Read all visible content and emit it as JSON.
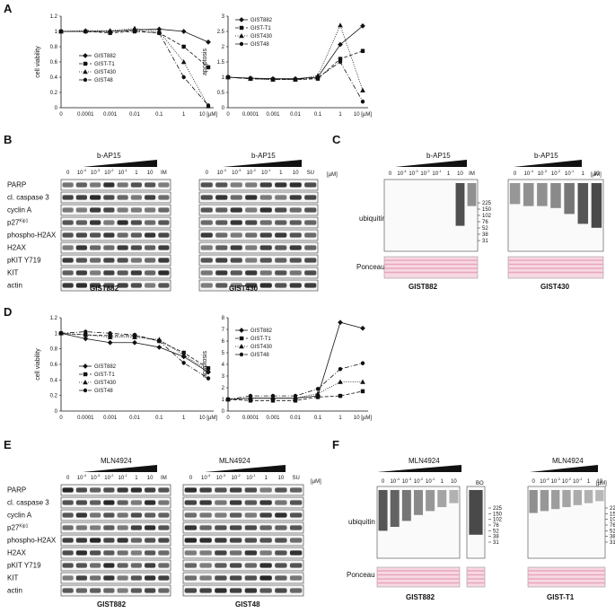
{
  "panels": {
    "A": "A",
    "B": "B",
    "C": "C",
    "D": "D",
    "E": "E",
    "F": "F"
  },
  "x_ticks": [
    "0",
    "0.0001",
    "0.001",
    "0.01",
    "0.1",
    "1",
    "10 [µM]"
  ],
  "series_names": [
    "GIST882",
    "GIST-T1",
    "GIST430",
    "GIST48"
  ],
  "chart_data": [
    {
      "id": "A-viability",
      "type": "line",
      "ylabel": "cell viability",
      "ylim": [
        0,
        1.2
      ],
      "yticks": [
        "0",
        "0.2",
        "0.4",
        "0.6",
        "0.8",
        "1",
        "1.2"
      ],
      "categories": [
        "0",
        "0.0001",
        "0.001",
        "0.01",
        "0.1",
        "1",
        "10"
      ],
      "series": [
        {
          "name": "GIST882",
          "values": [
            1,
            1,
            1,
            1.02,
            1.03,
            1,
            0.86
          ]
        },
        {
          "name": "GIST-T1",
          "values": [
            1,
            1,
            0.98,
            1,
            0.98,
            0.8,
            0.53
          ]
        },
        {
          "name": "GIST430",
          "values": [
            1,
            1.01,
            1.01,
            1.04,
            1,
            0.6,
            0.02
          ]
        },
        {
          "name": "GIST48",
          "values": [
            1,
            1,
            1,
            1.01,
            0.98,
            0.4,
            0.03
          ]
        }
      ]
    },
    {
      "id": "A-apoptosis",
      "type": "line",
      "ylabel": "apoptosis",
      "ylim": [
        0,
        3
      ],
      "yticks": [
        "0",
        "0.5",
        "1",
        "1.5",
        "2",
        "2.5",
        "3"
      ],
      "categories": [
        "0",
        "0.0001",
        "0.001",
        "0.01",
        "0.1",
        "1",
        "10"
      ],
      "series": [
        {
          "name": "GIST882",
          "values": [
            1,
            0.97,
            0.95,
            0.95,
            1,
            2.07,
            2.68
          ]
        },
        {
          "name": "GIST-T1",
          "values": [
            1,
            0.95,
            0.93,
            0.92,
            0.95,
            1.6,
            1.86
          ]
        },
        {
          "name": "GIST430",
          "values": [
            1,
            0.95,
            0.92,
            0.93,
            1.05,
            2.7,
            0.57
          ]
        },
        {
          "name": "GIST48",
          "values": [
            1,
            0.95,
            0.93,
            0.93,
            0.98,
            1.5,
            0.2
          ]
        }
      ]
    },
    {
      "id": "D-viability",
      "type": "line",
      "ylabel": "cell viability",
      "ylim": [
        0,
        1.2
      ],
      "yticks": [
        "0",
        "0.2",
        "0.4",
        "0.6",
        "0.8",
        "1",
        "1.2"
      ],
      "categories": [
        "0",
        "0.0001",
        "0.001",
        "0.01",
        "0.1",
        "1",
        "10"
      ],
      "series": [
        {
          "name": "GIST882",
          "values": [
            1,
            0.93,
            0.88,
            0.88,
            0.82,
            0.7,
            0.5
          ]
        },
        {
          "name": "GIST-T1",
          "values": [
            1,
            0.98,
            0.97,
            0.97,
            0.9,
            0.75,
            0.55
          ]
        },
        {
          "name": "GIST430",
          "values": [
            1,
            0.98,
            0.95,
            0.95,
            0.92,
            0.72,
            0.52
          ]
        },
        {
          "name": "GIST48",
          "values": [
            1,
            1.02,
            1,
            0.98,
            0.9,
            0.62,
            0.42
          ]
        }
      ]
    },
    {
      "id": "D-apoptosis",
      "type": "line",
      "ylabel": "apoptosis",
      "ylim": [
        0,
        8
      ],
      "yticks": [
        "0",
        "1",
        "2",
        "3",
        "4",
        "5",
        "6",
        "7",
        "8"
      ],
      "categories": [
        "0",
        "0.0001",
        "0.001",
        "0.01",
        "0.1",
        "1",
        "10"
      ],
      "series": [
        {
          "name": "GIST882",
          "values": [
            1,
            1.1,
            1.1,
            1.1,
            1.3,
            7.6,
            7.1
          ]
        },
        {
          "name": "GIST-T1",
          "values": [
            1,
            0.9,
            0.9,
            0.9,
            1.2,
            1.3,
            1.7
          ]
        },
        {
          "name": "GIST430",
          "values": [
            1,
            1.1,
            1.1,
            1.1,
            1.5,
            2.5,
            2.5
          ]
        },
        {
          "name": "GIST48",
          "values": [
            1,
            1.3,
            1.3,
            1.3,
            1.9,
            3.6,
            4.1
          ]
        }
      ]
    }
  ],
  "B": {
    "drug": "b-AP15",
    "rows": [
      "PARP",
      "cl. caspase 3",
      "cyclin A",
      "p27",
      "phospho-H2AX",
      "H2AX",
      "pKIT Y719",
      "KIT",
      "actin"
    ],
    "p27_sup": "Kip1",
    "cols_left": [
      "0",
      "10",
      "10",
      "10",
      "10",
      "1",
      "10",
      "IM"
    ],
    "cols_right": [
      "0",
      "10",
      "10",
      "10",
      "10",
      "1",
      "10",
      "SU"
    ],
    "exps": [
      "-4",
      "-3",
      "-2",
      "-1"
    ],
    "unit": "[µM]",
    "left_label": "GIST882",
    "right_label": "GIST430"
  },
  "C": {
    "drug": "b-AP15",
    "row": "ubiquitin",
    "ponceau": "Ponceau S",
    "cols_left": [
      "0",
      "10",
      "10",
      "10",
      "10",
      "1",
      "10",
      "IM"
    ],
    "cols_right": [
      "0",
      "10",
      "10",
      "10",
      "10",
      "1",
      "10"
    ],
    "unit": "[µM]",
    "markers": [
      "225",
      "150",
      "102",
      "76",
      "52",
      "38",
      "31"
    ],
    "left_label": "GIST882",
    "right_label": "GIST430"
  },
  "E": {
    "drug": "MLN4924",
    "rows": [
      "PARP",
      "cl. caspase 3",
      "cyclin A",
      "p27",
      "phospho-H2AX",
      "H2AX",
      "pKIT Y719",
      "KIT",
      "actin"
    ],
    "p27_sup": "Kip1",
    "cols_left": [
      "0",
      "10",
      "10",
      "10",
      "10",
      "1",
      "10",
      "IM"
    ],
    "cols_right": [
      "0",
      "10",
      "10",
      "10",
      "10",
      "1",
      "10",
      "SU"
    ],
    "unit": "[µM]",
    "left_label": "GIST882",
    "right_label": "GIST48"
  },
  "F": {
    "drug": "MLN4924",
    "row": "ubiquitin",
    "ponceau": "Ponceau S",
    "bo": "BO",
    "cols_left": [
      "0",
      "10",
      "10",
      "10",
      "10",
      "1",
      "10"
    ],
    "cols_right": [
      "0",
      "10",
      "10",
      "10",
      "10",
      "1",
      "10"
    ],
    "unit": "[µM]",
    "markers": [
      "225",
      "150",
      "102",
      "76",
      "52",
      "38",
      "31"
    ],
    "left_label": "GIST882",
    "right_label": "GIST-T1"
  },
  "colors": {
    "band": "#1a1a1a",
    "ponceau": "#e8a6bc",
    "ponceau_bg": "#f7d8e2"
  }
}
